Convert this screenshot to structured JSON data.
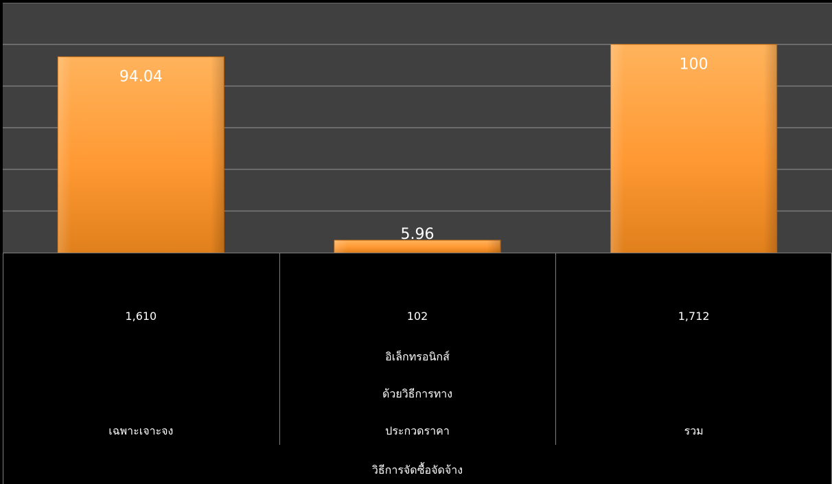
{
  "chart_data": {
    "type": "bar",
    "categories": [
      [
        "เฉพาะเจาะจง"
      ],
      [
        "ประกวดราคา",
        "ด้วยวิธีการทาง",
        "อิเล็กทรอนิกส์"
      ],
      [
        "รวม"
      ]
    ],
    "values": [
      94.04,
      5.96,
      100
    ],
    "data_labels": [
      "94.04",
      "5.96",
      "100"
    ],
    "table_values": [
      "1,610",
      "102",
      "1,712"
    ],
    "xlabel": "วิธีการจัดซื้อจัดจ้าง",
    "ylim": [
      0,
      120
    ],
    "grid": true,
    "colors": {
      "plot_bg": "#404040",
      "bar_light": "#ffa94d",
      "bar_mid": "#ff9933",
      "bar_dark": "#d97816",
      "grid": "#7a7a7a",
      "table_bg": "#000000",
      "table_border": "#808080",
      "text": "#ffffff"
    }
  }
}
